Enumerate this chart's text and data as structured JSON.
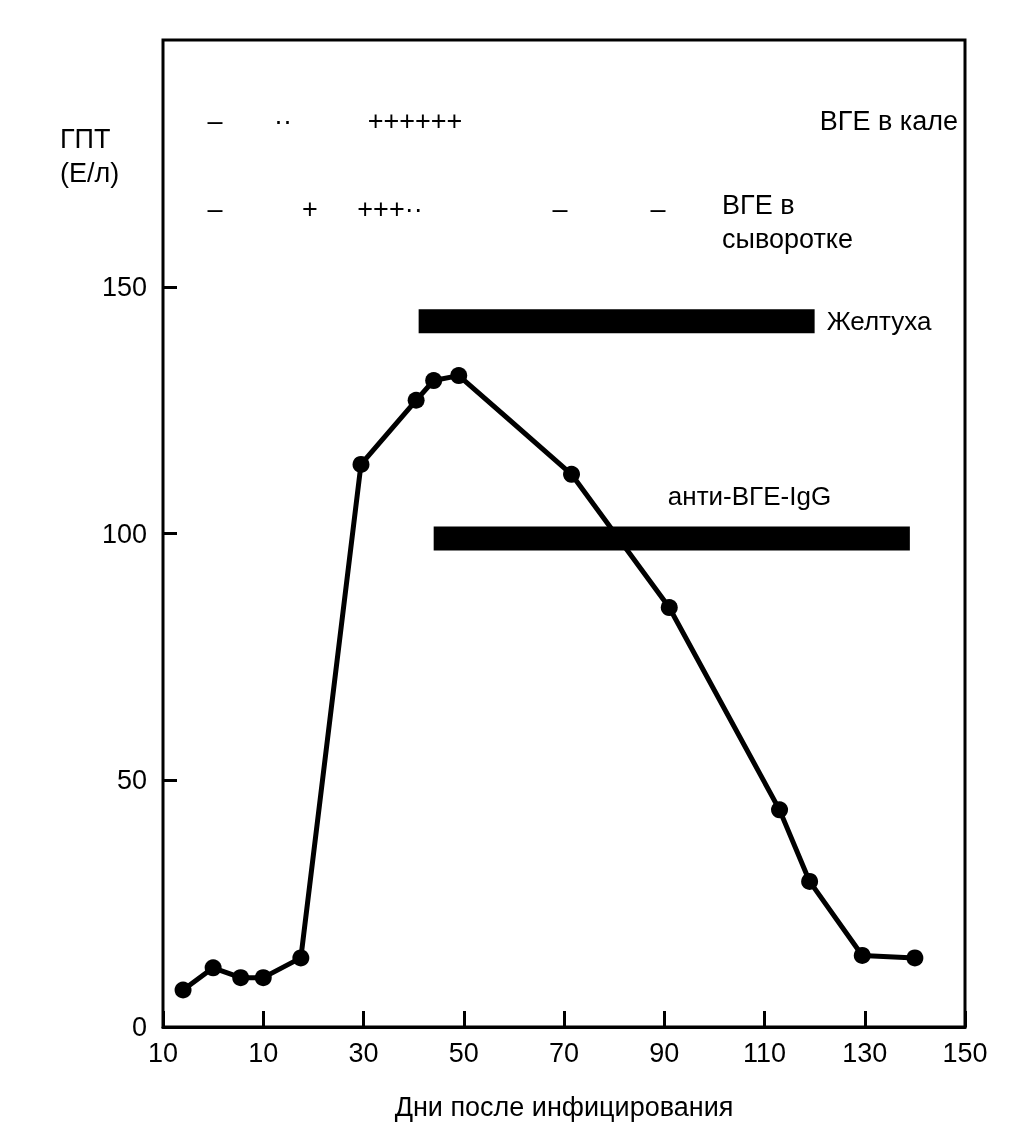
{
  "chart_data": {
    "type": "line",
    "xlabel": "Дни после инфицирования",
    "ylabel": "ГПТ (Е/л)",
    "xlim": [
      -10,
      150
    ],
    "xticks": [
      {
        "value": -10,
        "label": "10"
      },
      10,
      30,
      50,
      70,
      90,
      110,
      130,
      150
    ],
    "ylim": [
      0,
      200
    ],
    "yticks": [
      0,
      50,
      100,
      150
    ],
    "grid": false,
    "legend": false,
    "marker": "circle",
    "line_style": "solid",
    "series": [
      {
        "color": "#000000",
        "x": [
          -6,
          0,
          5.5,
          10,
          17.5,
          29.5,
          40.5,
          44,
          49,
          71.5,
          91,
          113,
          119,
          129.5,
          140
        ],
        "values": [
          7.5,
          12,
          10,
          10,
          14,
          114,
          127,
          131,
          132,
          112,
          85,
          44,
          29.5,
          14.5,
          14
        ]
      },
      {
        "name": "Желтуха",
        "type": "line",
        "marker": "none",
        "color": "#000000",
        "x": [
          41,
          120
        ],
        "values": [
          143,
          143
        ]
      },
      {
        "name": "анти-ВГЕ-IgG",
        "type": "line",
        "marker": "none",
        "color": "#000000",
        "x": [
          44,
          139
        ],
        "values": [
          99,
          99
        ]
      }
    ],
    "annotations": [
      "–",
      "··",
      "++++++",
      "ВГЕ в кале",
      "–",
      "+",
      "+++··",
      "–",
      "–",
      "ВГЕ в сыворотке"
    ]
  }
}
